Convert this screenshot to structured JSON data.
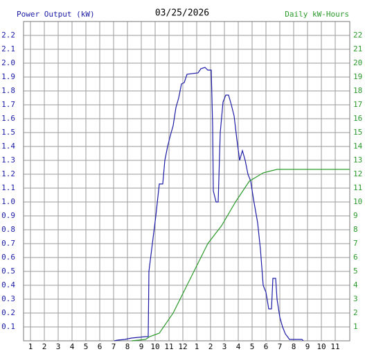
{
  "chart_data": {
    "type": "line",
    "title": "03/25/2026",
    "ylabel": "Power Output (kW)",
    "y2label": "Daily kW-Hours",
    "xlim": [
      0.5,
      24.05
    ],
    "xticks": [
      {
        "value": 1,
        "label": "1"
      },
      {
        "value": 2,
        "label": "2"
      },
      {
        "value": 3,
        "label": "3"
      },
      {
        "value": 4,
        "label": "4"
      },
      {
        "value": 5,
        "label": "5"
      },
      {
        "value": 6,
        "label": "6"
      },
      {
        "value": 7,
        "label": "7"
      },
      {
        "value": 8,
        "label": "8"
      },
      {
        "value": 9,
        "label": "9"
      },
      {
        "value": 10,
        "label": "10"
      },
      {
        "value": 11,
        "label": "11"
      },
      {
        "value": 12,
        "label": "12"
      },
      {
        "value": 13,
        "label": "1"
      },
      {
        "value": 14,
        "label": "2"
      },
      {
        "value": 15,
        "label": "3"
      },
      {
        "value": 16,
        "label": "4"
      },
      {
        "value": 17,
        "label": "5"
      },
      {
        "value": 18,
        "label": "6"
      },
      {
        "value": 19,
        "label": "7"
      },
      {
        "value": 20,
        "label": "8"
      },
      {
        "value": 21,
        "label": "9"
      },
      {
        "value": 22,
        "label": "10"
      },
      {
        "value": 23,
        "label": "11"
      }
    ],
    "ylim": [
      0,
      2.3
    ],
    "yticks": [
      0.1,
      0.2,
      0.3,
      0.4,
      0.5,
      0.6,
      0.7,
      0.8,
      0.9,
      {
        "value": 1,
        "label": "1.0"
      },
      1.1,
      1.2,
      1.3,
      1.4,
      1.5,
      1.6,
      1.7,
      1.8,
      1.9,
      {
        "value": 2,
        "label": "2.0"
      },
      2.1,
      2.2
    ],
    "y2lim": [
      0,
      23
    ],
    "y2ticks": [
      1,
      2,
      3,
      4,
      5,
      6,
      7,
      8,
      9,
      10,
      11,
      12,
      13,
      14,
      15,
      16,
      17,
      18,
      19,
      20,
      21,
      22
    ],
    "grid": true,
    "series": [
      {
        "name": "Power Output (kW)",
        "color": "#1a1aa6",
        "x": [
          7.05,
          7.3,
          7.8,
          8.3,
          8.8,
          9.3,
          9.5,
          9.55,
          9.8,
          10.05,
          10.3,
          10.55,
          10.7,
          10.9,
          11.1,
          11.3,
          11.5,
          11.7,
          11.9,
          12.1,
          12.3,
          13.1,
          13.3,
          13.6,
          13.8,
          14.05,
          14.15,
          14.2,
          14.4,
          14.55,
          14.7,
          14.9,
          15.1,
          15.3,
          15.5,
          15.7,
          15.9,
          16.1,
          16.3,
          16.5,
          16.7,
          16.9,
          17.1,
          17.4,
          17.6,
          17.8,
          18.0,
          18.2,
          18.4,
          18.5,
          18.7,
          18.8,
          19.0,
          19.2,
          19.4,
          19.7,
          20.6,
          20.7
        ],
        "values": [
          0,
          0.005,
          0.01,
          0.02,
          0.025,
          0.03,
          0.03,
          0.5,
          0.7,
          0.9,
          1.13,
          1.13,
          1.3,
          1.4,
          1.48,
          1.55,
          1.68,
          1.75,
          1.85,
          1.86,
          1.92,
          1.93,
          1.96,
          1.97,
          1.95,
          1.95,
          1.55,
          1.08,
          1.0,
          1.0,
          1.5,
          1.72,
          1.77,
          1.77,
          1.7,
          1.62,
          1.45,
          1.3,
          1.37,
          1.3,
          1.2,
          1.15,
          1.02,
          0.85,
          0.66,
          0.4,
          0.35,
          0.23,
          0.23,
          0.45,
          0.45,
          0.3,
          0.17,
          0.1,
          0.05,
          0.01,
          0.01,
          0
        ]
      },
      {
        "name": "Daily kW-Hours",
        "color": "#2a9a2a",
        "axis": "y2",
        "x": [
          8.3,
          8.8,
          9.3,
          9.6,
          10.3,
          11.3,
          12.3,
          13.3,
          13.8,
          14.8,
          15.8,
          16.8,
          17.8,
          18.8,
          19.1,
          24.05
        ],
        "values": [
          0,
          0.05,
          0.1,
          0.3,
          0.55,
          2.0,
          4.0,
          6.0,
          7.0,
          8.3,
          10.0,
          11.5,
          12.1,
          12.35,
          12.35,
          12.35
        ]
      }
    ]
  }
}
